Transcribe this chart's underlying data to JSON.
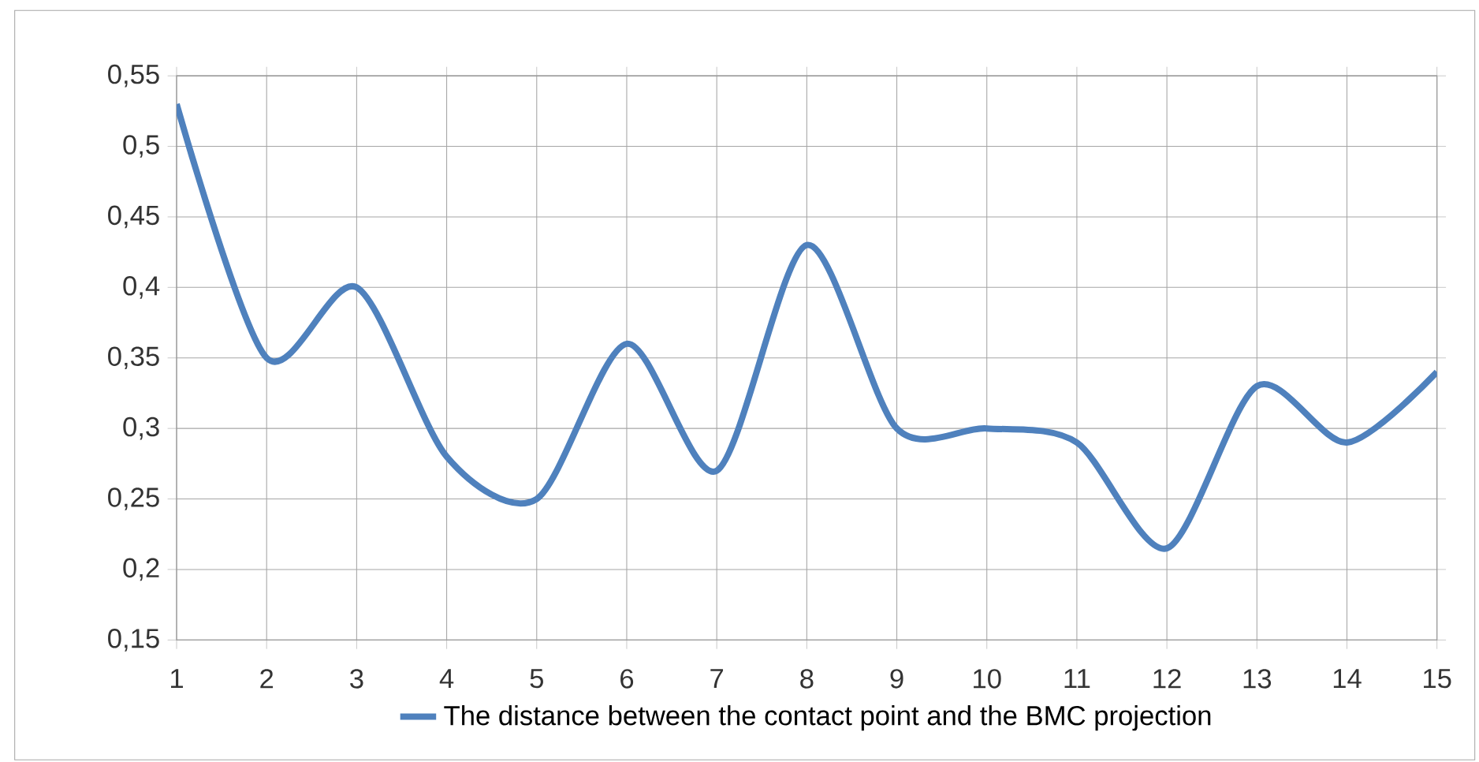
{
  "chart_data": {
    "type": "line",
    "x": [
      1,
      2,
      3,
      4,
      5,
      6,
      7,
      8,
      9,
      10,
      11,
      12,
      13,
      14,
      15
    ],
    "series": [
      {
        "name": "The distance between the contact point and the BMC projection",
        "color": "#4f81bd",
        "values": [
          0.53,
          0.35,
          0.4,
          0.28,
          0.25,
          0.36,
          0.27,
          0.43,
          0.3,
          0.3,
          0.29,
          0.215,
          0.33,
          0.29,
          0.34
        ]
      }
    ],
    "xlim": [
      1,
      15
    ],
    "xticks": [
      1,
      2,
      3,
      4,
      5,
      6,
      7,
      8,
      9,
      10,
      11,
      12,
      13,
      14,
      15
    ],
    "ylim": [
      0.15,
      0.55
    ],
    "yticks": [
      {
        "value": 0.15,
        "label": "0,15"
      },
      {
        "value": 0.2,
        "label": "0,2"
      },
      {
        "value": 0.25,
        "label": "0,25"
      },
      {
        "value": 0.3,
        "label": "0,3"
      },
      {
        "value": 0.35,
        "label": "0,35"
      },
      {
        "value": 0.4,
        "label": "0,4"
      },
      {
        "value": 0.45,
        "label": "0,45"
      },
      {
        "value": 0.5,
        "label": "0,5"
      },
      {
        "value": 0.55,
        "label": "0,55"
      }
    ],
    "grid": true,
    "legend": "bottom",
    "marker": "none",
    "line_style": "solid"
  }
}
